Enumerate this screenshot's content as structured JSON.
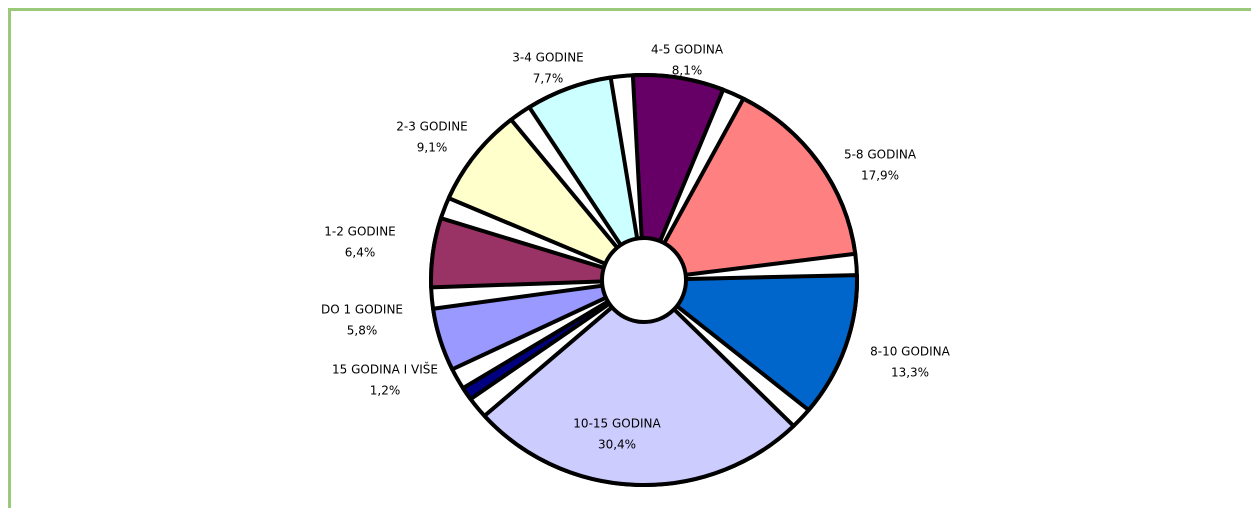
{
  "chart_data": {
    "type": "pie",
    "categories": [
      "4-5 GODINA",
      "5-8 GODINA",
      "8-10 GODINA",
      "10-15 GODINA",
      "15 GODINA I VIŠE",
      "DO 1 GODINE",
      "1-2 GODINE",
      "2-3 GODINE",
      "3-4 GODINE"
    ],
    "values": [
      8.1,
      17.9,
      13.3,
      30.4,
      1.2,
      5.8,
      6.4,
      9.1,
      7.7
    ],
    "value_labels": [
      "8,1%",
      "17,9%",
      "13,3%",
      "30,4%",
      "1,2%",
      "5,8%",
      "6,4%",
      "9,1%",
      "7,7%"
    ],
    "colors": [
      "#660066",
      "#ff8080",
      "#0066cc",
      "#ccccff",
      "#000080",
      "#9999ff",
      "#993366",
      "#ffffcc",
      "#ccffff"
    ]
  }
}
